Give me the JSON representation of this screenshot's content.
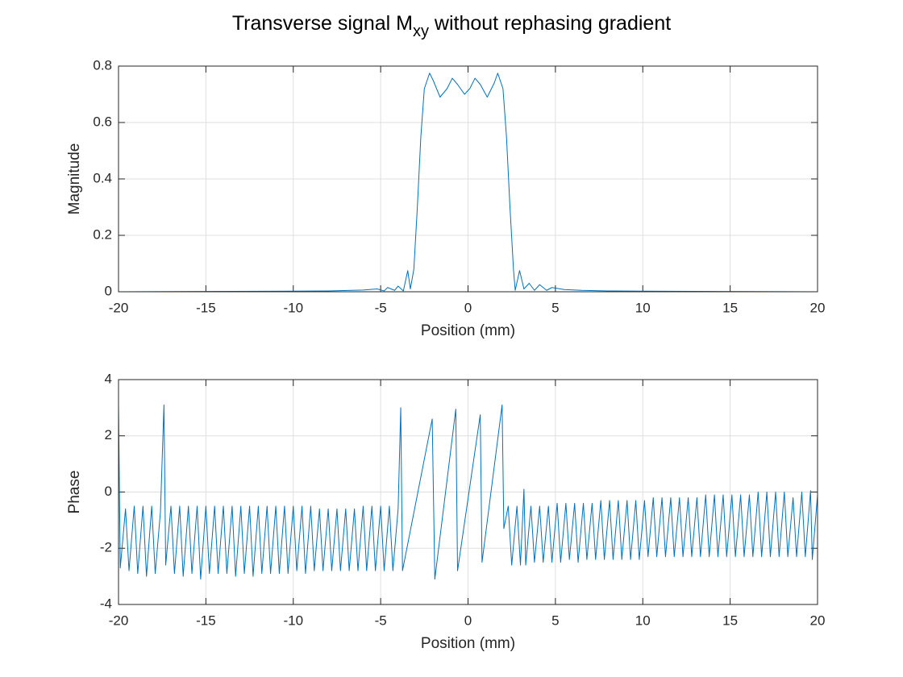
{
  "title": [
    "Transverse signal M",
    "xy",
    " without rephasing gradient"
  ],
  "chart_data": [
    {
      "type": "line",
      "xlabel": "Position (mm)",
      "ylabel": "Magnitude",
      "color": "#0072bd",
      "grid": true,
      "xlim": [
        -20,
        20
      ],
      "xticks": [
        -20,
        -15,
        -10,
        -5,
        0,
        5,
        10,
        15,
        20
      ],
      "ylim": [
        0,
        0.8
      ],
      "yticks": [
        0,
        0.2,
        0.4,
        0.6,
        0.8
      ],
      "x": [
        -20,
        -10,
        -8,
        -6,
        -5.2,
        -4.8,
        -4.6,
        -4.2,
        -4.0,
        -3.7,
        -3.45,
        -3.3,
        -3.1,
        -2.9,
        -2.7,
        -2.5,
        -2.2,
        -2.0,
        -1.6,
        -1.2,
        -0.9,
        -0.6,
        -0.2,
        0.1,
        0.4,
        0.7,
        1.1,
        1.5,
        1.7,
        2.0,
        2.2,
        2.4,
        2.6,
        2.7,
        2.95,
        3.2,
        3.5,
        3.8,
        4.1,
        4.5,
        4.8,
        5.5,
        6.5,
        8,
        10,
        20
      ],
      "values": [
        0,
        0.002,
        0.003,
        0.006,
        0.01,
        0.003,
        0.015,
        0.005,
        0.02,
        0.003,
        0.075,
        0.01,
        0.08,
        0.3,
        0.55,
        0.72,
        0.775,
        0.75,
        0.69,
        0.72,
        0.757,
        0.735,
        0.7,
        0.72,
        0.757,
        0.735,
        0.69,
        0.74,
        0.775,
        0.72,
        0.55,
        0.3,
        0.08,
        0.005,
        0.075,
        0.01,
        0.03,
        0.005,
        0.025,
        0.005,
        0.015,
        0.008,
        0.005,
        0.003,
        0.002,
        0
      ]
    },
    {
      "type": "line",
      "xlabel": "Position (mm)",
      "ylabel": "Phase",
      "color": "#0072bd",
      "grid": true,
      "xlim": [
        -20,
        20
      ],
      "xticks": [
        -20,
        -15,
        -10,
        -5,
        0,
        5,
        10,
        15,
        20
      ],
      "ylim": [
        -4,
        4
      ],
      "yticks": [
        -4,
        -2,
        0,
        2,
        4
      ],
      "x": [
        -20,
        -19.9,
        -19.6,
        -19.4,
        -19.1,
        -18.9,
        -18.6,
        -18.4,
        -18.1,
        -17.9,
        -17.6,
        -17.4,
        -17.3,
        -17.0,
        -16.8,
        -16.5,
        -16.3,
        -16.0,
        -15.8,
        -15.5,
        -15.3,
        -15.0,
        -14.8,
        -14.5,
        -14.3,
        -14.0,
        -13.8,
        -13.5,
        -13.3,
        -13.0,
        -12.8,
        -12.5,
        -12.3,
        -12.0,
        -11.8,
        -11.5,
        -11.3,
        -11.0,
        -10.8,
        -10.5,
        -10.3,
        -10.0,
        -9.8,
        -9.5,
        -9.3,
        -9.0,
        -8.8,
        -8.5,
        -8.3,
        -8.0,
        -7.8,
        -7.5,
        -7.3,
        -7.0,
        -6.8,
        -6.5,
        -6.3,
        -6.0,
        -5.8,
        -5.5,
        -5.3,
        -5.0,
        -4.8,
        -4.5,
        -4.3,
        -4.0,
        -3.85,
        -3.75,
        -2.05,
        -1.9,
        -0.7,
        -0.6,
        0.7,
        0.8,
        1.95,
        2.05,
        2.3,
        2.5,
        2.8,
        3.0,
        3.2,
        3.3,
        3.6,
        3.8,
        4.1,
        4.3,
        4.6,
        4.8,
        5.1,
        5.3,
        5.6,
        5.8,
        6.1,
        6.3,
        6.6,
        6.8,
        7.1,
        7.3,
        7.6,
        7.8,
        8.1,
        8.3,
        8.6,
        8.8,
        9.1,
        9.3,
        9.6,
        9.8,
        10.1,
        10.3,
        10.6,
        10.8,
        11.1,
        11.3,
        11.6,
        11.8,
        12.1,
        12.3,
        12.6,
        12.8,
        13.1,
        13.3,
        13.6,
        13.8,
        14.1,
        14.3,
        14.6,
        14.8,
        15.1,
        15.3,
        15.6,
        15.8,
        16.1,
        16.3,
        16.6,
        16.8,
        17.1,
        17.3,
        17.6,
        17.8,
        18.1,
        18.3,
        18.6,
        18.8,
        19.1,
        19.3,
        19.6,
        19.7,
        20
      ],
      "values": [
        3.1,
        -2.7,
        -0.6,
        -2.8,
        -0.5,
        -2.9,
        -0.5,
        -3.0,
        -0.5,
        -2.9,
        -0.7,
        3.1,
        -2.6,
        -0.5,
        -2.9,
        -0.5,
        -3.0,
        -0.5,
        -2.9,
        -0.5,
        -3.1,
        -0.5,
        -2.9,
        -0.5,
        -2.9,
        -0.5,
        -2.9,
        -0.5,
        -3.0,
        -0.5,
        -2.9,
        -0.5,
        -3.0,
        -0.5,
        -2.9,
        -0.5,
        -2.9,
        -0.5,
        -2.9,
        -0.5,
        -2.9,
        -0.5,
        -2.8,
        -0.5,
        -2.9,
        -0.5,
        -2.8,
        -0.6,
        -2.8,
        -0.6,
        -2.8,
        -0.6,
        -2.8,
        -0.6,
        -2.8,
        -0.6,
        -2.8,
        -0.5,
        -2.8,
        -0.5,
        -2.8,
        -0.5,
        -2.8,
        -0.5,
        -2.8,
        -0.6,
        3.0,
        -2.8,
        2.6,
        -3.1,
        2.95,
        -2.8,
        2.75,
        -2.5,
        3.1,
        -1.3,
        -0.5,
        -2.6,
        -0.5,
        -2.6,
        0.1,
        -2.6,
        -0.5,
        -2.5,
        -0.5,
        -2.5,
        -0.5,
        -2.5,
        -0.4,
        -2.5,
        -0.4,
        -2.4,
        -0.4,
        -2.5,
        -0.4,
        -2.4,
        -0.4,
        -2.4,
        -0.3,
        -2.4,
        -0.3,
        -2.4,
        -0.3,
        -2.4,
        -0.3,
        -2.4,
        -0.3,
        -2.4,
        -0.3,
        -2.3,
        -0.2,
        -2.3,
        -0.2,
        -2.3,
        -0.2,
        -2.3,
        -0.2,
        -2.3,
        -0.2,
        -2.3,
        -0.2,
        -2.3,
        -0.1,
        -2.3,
        -0.1,
        -2.3,
        -0.1,
        -2.3,
        -0.1,
        -2.3,
        -0.1,
        -2.3,
        -0.1,
        -2.3,
        0,
        -2.3,
        0,
        -2.3,
        0,
        -2.3,
        0,
        -2.3,
        -0.2,
        -2.3,
        0,
        -2.3,
        0.05,
        -2.4,
        -0.1
      ]
    }
  ]
}
